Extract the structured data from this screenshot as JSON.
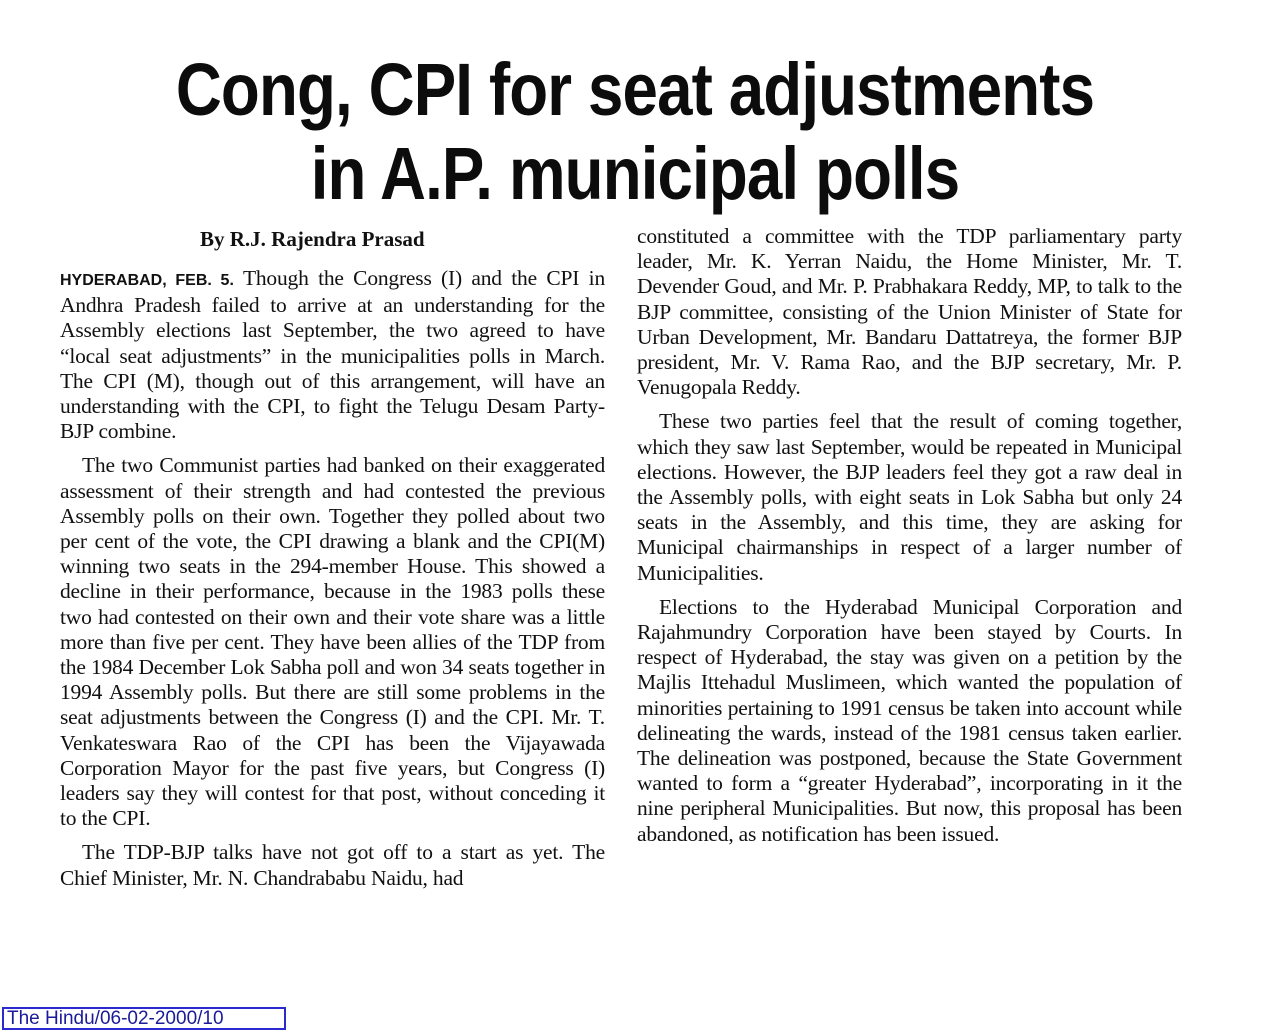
{
  "article": {
    "headline_line1": "Cong, CPI for seat adjustments",
    "headline_line2": "in A.P. municipal polls",
    "byline": "By R.J. Rajendra Prasad",
    "dateline": "HYDERABAD, FEB. 5.",
    "left_column": [
      "Though the Congress (I) and the CPI in Andhra Pradesh failed to arrive at an understanding for the Assembly elections last September, the two agreed to have “local seat adjustments” in the municipalities polls in March. The CPI (M), though out of this arrangement, will have an understanding with the CPI, to fight the Telugu Desam Party-BJP combine.",
      "The two Communist parties had banked on their exaggerated assessment of their strength and had contested the previous Assembly polls on their own. Together they polled about two per cent of the vote, the CPI drawing a blank and the CPI(M) winning two seats in the 294-member House. This showed a decline in their performance, because in the 1983 polls these two had contested on their own and their vote share was a little more than five per cent. They have been allies of the TDP from the 1984 December Lok Sabha poll and won 34 seats together in 1994 Assembly polls. But there are still some problems in the seat adjustments between the Congress (I) and the CPI. Mr. T. Venkateswara Rao of the CPI has been the Vijayawada Corporation Mayor for the past five years, but Congress (I) leaders say they will contest for that post, without conceding it to the CPI.",
      "The TDP-BJP talks have not got off to a start as yet. The Chief Minister, Mr. N. Chandrababu Naidu, had"
    ],
    "right_column": [
      "constituted a committee with the TDP parliamentary party leader, Mr. K. Yerran Naidu, the Home Minister, Mr. T. Devender Goud, and Mr. P. Prabhakara Reddy, MP, to talk to the BJP committee, consisting of the Union Minister of State for Urban Development, Mr. Bandaru Dattatreya, the former BJP president, Mr. V. Rama Rao, and the BJP secretary, Mr. P. Venugopala Reddy.",
      "These two parties feel that the result of coming together, which they saw last September, would be repeated in Municipal elections. However, the BJP leaders feel they got a raw deal in the Assembly polls, with eight seats in Lok Sabha but only 24 seats in the Assembly, and this time, they are asking for Municipal chairmanships in respect of a larger number of Municipalities.",
      "Elections to the Hyderabad Municipal Corporation and Rajahmundry Corporation have been stayed by Courts. In respect of Hyderabad, the stay was given on a petition by the Majlis Ittehadul Muslimeen, which wanted the population of minorities pertaining to 1991 census be taken into account while delineating the wards, instead of the 1981 census taken earlier. The delineation was postponed, because the State Government wanted to form a “greater Hyderabad”, incorporating in it the nine peripheral Municipalities. But now, this proposal has been abandoned, as notification has been issued."
    ]
  },
  "source_tag": "The Hindu/06-02-2000/10"
}
